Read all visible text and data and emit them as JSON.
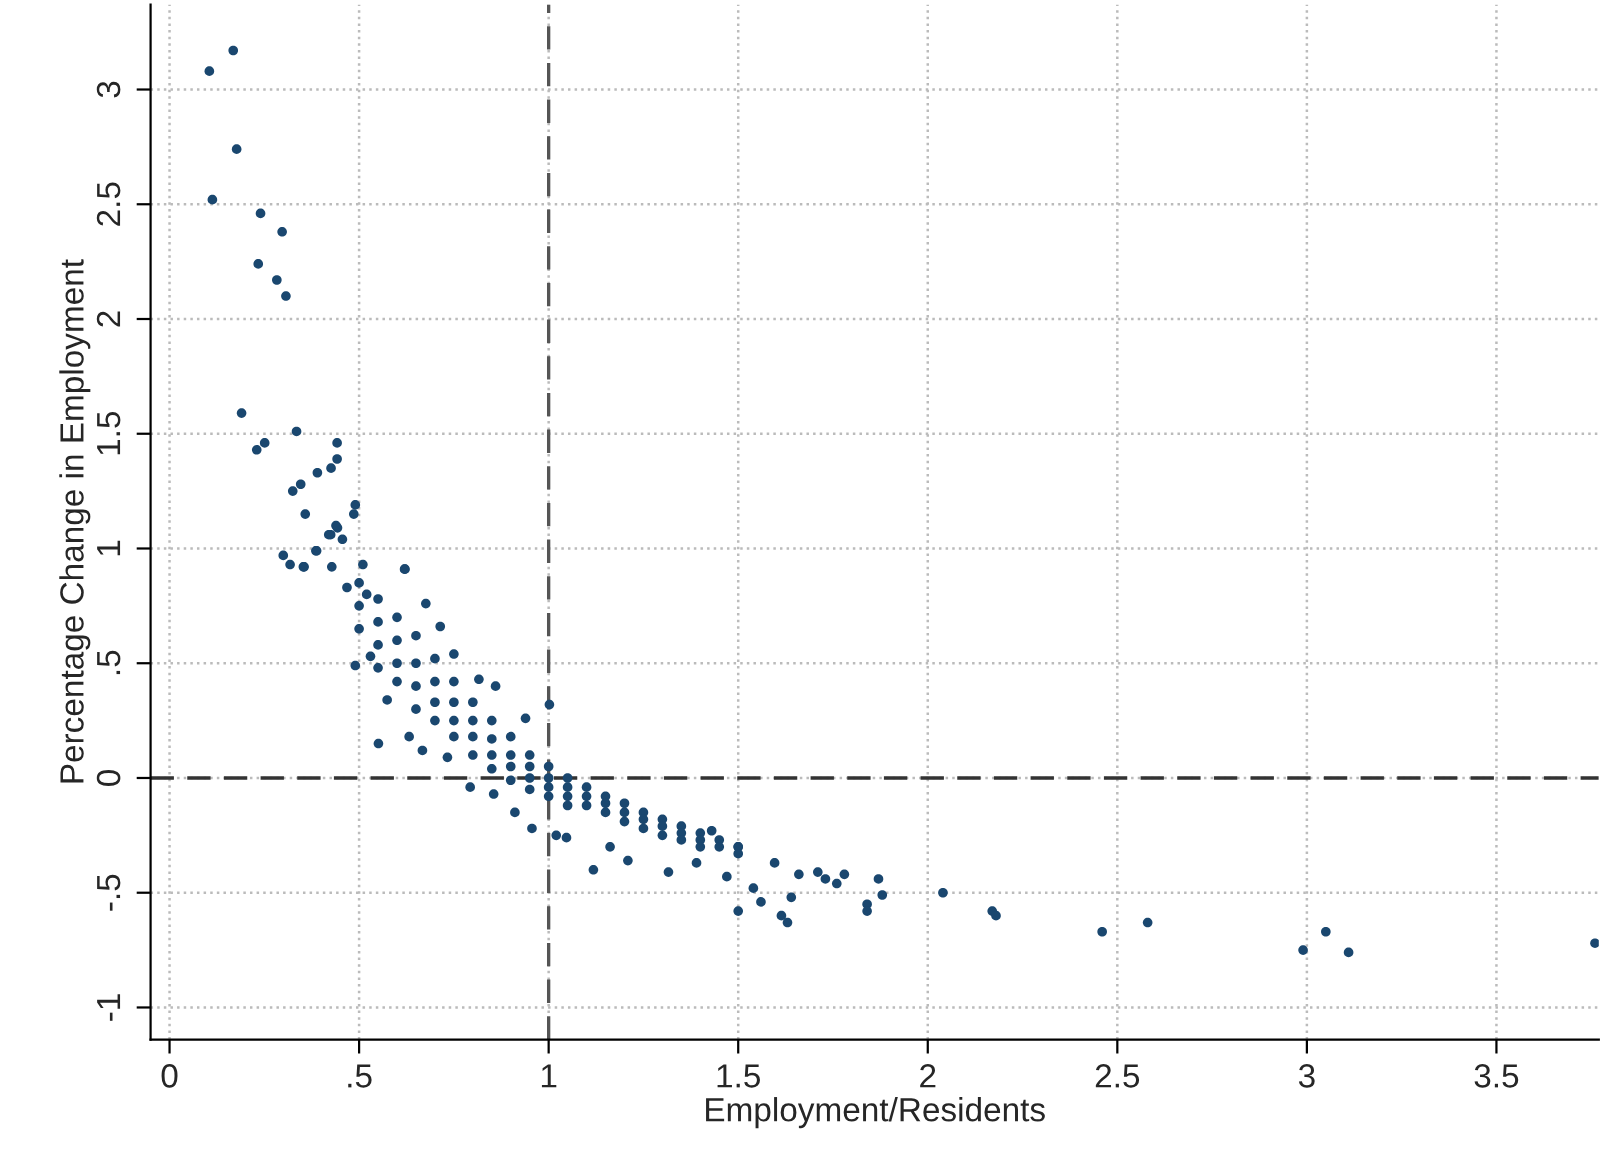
{
  "chart_data": {
    "type": "scatter",
    "xlabel": "Employment/Residents",
    "ylabel": "Percentage Change in Employment",
    "x": [
      0.168,
      0.105,
      0.177,
      0.113,
      0.24,
      0.297,
      0.234,
      0.283,
      0.307,
      0.19,
      0.335,
      0.251,
      0.23,
      0.442,
      0.442,
      0.426,
      0.39,
      0.346,
      0.325,
      0.49,
      0.486,
      0.358,
      0.439,
      0.42,
      0.456,
      0.386,
      0.3,
      0.318,
      0.353,
      0.621,
      1.66,
      1.71,
      1.73,
      1.76,
      1.78,
      1.87,
      1.84,
      1.84,
      1.88,
      2.04,
      2.17,
      2.18,
      2.46,
      2.58,
      2.99,
      3.05,
      3.11,
      3.76,
      0.355,
      0.388,
      0.425,
      0.443,
      0.428,
      0.51,
      0.62,
      0.468,
      0.52,
      0.676,
      0.714,
      0.49,
      0.53,
      0.574,
      0.551,
      0.632,
      0.667,
      0.733,
      0.75,
      0.816,
      0.86,
      0.939,
      1.002,
      0.793,
      0.855,
      0.911,
      0.956,
      1.02,
      1.047,
      1.118,
      1.162,
      1.209,
      1.316,
      1.39,
      1.43,
      1.47,
      1.5,
      1.5,
      1.54,
      1.56,
      1.614,
      1.63,
      1.64,
      1.596,
      0.5,
      0.5,
      0.5,
      0.55,
      0.55,
      0.55,
      0.55,
      0.6,
      0.6,
      0.6,
      0.6,
      0.65,
      0.65,
      0.65,
      0.65,
      0.7,
      0.7,
      0.7,
      0.7,
      0.75,
      0.75,
      0.75,
      0.75,
      0.8,
      0.8,
      0.8,
      0.8,
      0.85,
      0.85,
      0.85,
      0.85,
      0.9,
      0.9,
      0.9,
      0.9,
      0.95,
      0.95,
      0.95,
      0.95,
      1.0,
      1.0,
      1.0,
      1.0,
      1.05,
      1.05,
      1.05,
      1.05,
      1.1,
      1.1,
      1.1,
      1.15,
      1.15,
      1.15,
      1.2,
      1.2,
      1.2,
      1.25,
      1.25,
      1.25,
      1.3,
      1.3,
      1.3,
      1.35,
      1.35,
      1.35,
      1.4,
      1.4,
      1.4,
      1.45,
      1.45,
      1.5,
      1.5
    ],
    "values": [
      3.17,
      3.08,
      2.74,
      2.52,
      2.46,
      2.38,
      2.24,
      2.17,
      2.1,
      1.59,
      1.51,
      1.46,
      1.43,
      1.46,
      1.39,
      1.35,
      1.33,
      1.28,
      1.25,
      1.19,
      1.15,
      1.15,
      1.1,
      1.06,
      1.04,
      0.99,
      0.97,
      0.93,
      0.92,
      0.91,
      -0.42,
      -0.41,
      -0.44,
      -0.46,
      -0.42,
      -0.44,
      -0.55,
      -0.58,
      -0.51,
      -0.5,
      -0.58,
      -0.6,
      -0.67,
      -0.63,
      -0.75,
      -0.67,
      -0.76,
      -0.72,
      0.92,
      0.99,
      1.06,
      1.09,
      0.92,
      0.93,
      0.91,
      0.83,
      0.8,
      0.76,
      0.66,
      0.49,
      0.53,
      0.34,
      0.15,
      0.18,
      0.12,
      0.09,
      0.54,
      0.43,
      0.4,
      0.26,
      0.32,
      -0.04,
      -0.07,
      -0.15,
      -0.22,
      -0.25,
      -0.26,
      -0.4,
      -0.3,
      -0.36,
      -0.41,
      -0.37,
      -0.23,
      -0.43,
      -0.3,
      -0.58,
      -0.48,
      -0.54,
      -0.6,
      -0.63,
      -0.52,
      -0.37,
      0.85,
      0.75,
      0.65,
      0.78,
      0.68,
      0.58,
      0.48,
      0.7,
      0.6,
      0.5,
      0.42,
      0.62,
      0.5,
      0.4,
      0.3,
      0.52,
      0.42,
      0.33,
      0.25,
      0.42,
      0.33,
      0.25,
      0.18,
      0.33,
      0.25,
      0.18,
      0.1,
      0.25,
      0.17,
      0.1,
      0.04,
      0.18,
      0.1,
      0.05,
      -0.01,
      0.1,
      0.05,
      0,
      -0.05,
      0.05,
      0,
      -0.04,
      -0.08,
      0,
      -0.04,
      -0.08,
      -0.12,
      -0.04,
      -0.08,
      -0.12,
      -0.08,
      -0.11,
      -0.15,
      -0.11,
      -0.15,
      -0.19,
      -0.15,
      -0.18,
      -0.22,
      -0.18,
      -0.21,
      -0.25,
      -0.21,
      -0.24,
      -0.27,
      -0.24,
      -0.27,
      -0.3,
      -0.27,
      -0.3,
      -0.3,
      -0.33
    ],
    "color": "#1a476f",
    "marker": "circle",
    "xlim": [
      -0.05,
      3.77
    ],
    "ylim": [
      -1.14,
      3.37
    ],
    "xticks": [
      0,
      {
        "value": 0.5,
        "label": ".5"
      },
      1,
      1.5,
      2,
      2.5,
      3,
      3.5
    ],
    "yticks": [
      -1,
      {
        "value": -0.5,
        "label": "-.5"
      },
      0,
      {
        "value": 0.5,
        "label": ".5"
      },
      1,
      1.5,
      2,
      2.5,
      3
    ],
    "grid": true,
    "ref_lines": [
      {
        "axis": "x",
        "value": 1,
        "color": "#555555",
        "line_style": "dashed"
      },
      {
        "axis": "y",
        "value": 0,
        "color": "#333333",
        "line_style": "dashed"
      }
    ]
  }
}
